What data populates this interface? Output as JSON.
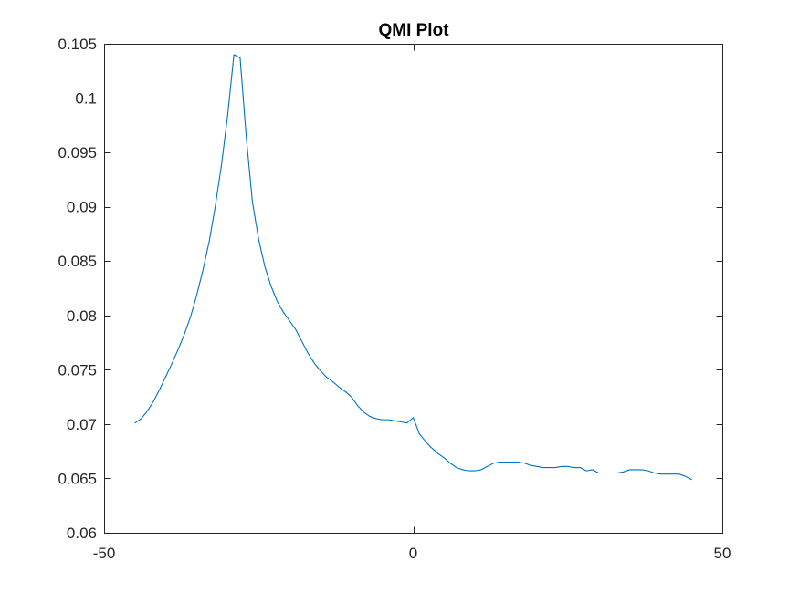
{
  "figure": {
    "background": "#ffffff",
    "axes_color": "#262626"
  },
  "chart_data": {
    "type": "line",
    "title": "QMI Plot",
    "xlabel": "",
    "ylabel": "",
    "xlim": [
      -50,
      50
    ],
    "ylim": [
      0.06,
      0.105
    ],
    "grid": false,
    "box": true,
    "x_ticks": [
      -50,
      0,
      50
    ],
    "x_tick_labels": [
      "-50",
      "0",
      "50"
    ],
    "y_ticks": [
      0.06,
      0.065,
      0.07,
      0.075,
      0.08,
      0.085,
      0.09,
      0.095,
      0.1,
      0.105
    ],
    "y_tick_labels": [
      "0.06",
      "0.065",
      "0.07",
      "0.075",
      "0.08",
      "0.085",
      "0.09",
      "0.095",
      "0.1",
      "0.105"
    ],
    "series": [
      {
        "color": "#0072BD",
        "x": [
          -45,
          -44,
          -43,
          -42,
          -41,
          -40,
          -39,
          -38,
          -37,
          -36,
          -35,
          -34,
          -33,
          -32,
          -31,
          -30,
          -29,
          -28,
          -27,
          -26,
          -25,
          -24,
          -23,
          -22,
          -21,
          -20,
          -19,
          -18,
          -17,
          -16,
          -15,
          -14,
          -13,
          -12,
          -11,
          -10,
          -9,
          -8,
          -7,
          -6,
          -5,
          -4,
          -3,
          -2,
          -1,
          0,
          1,
          2,
          3,
          4,
          5,
          6,
          7,
          8,
          9,
          10,
          11,
          12,
          13,
          14,
          15,
          16,
          17,
          18,
          19,
          20,
          21,
          22,
          23,
          24,
          25,
          26,
          27,
          28,
          29,
          30,
          31,
          32,
          33,
          34,
          35,
          36,
          37,
          38,
          39,
          40,
          41,
          42,
          43,
          44,
          45
        ],
        "y": [
          0.0701,
          0.0705,
          0.0712,
          0.0721,
          0.0732,
          0.0744,
          0.0756,
          0.0769,
          0.0783,
          0.0799,
          0.0819,
          0.0842,
          0.0868,
          0.0901,
          0.0939,
          0.0985,
          0.104,
          0.1037,
          0.0964,
          0.0904,
          0.087,
          0.0845,
          0.0827,
          0.0813,
          0.0803,
          0.0795,
          0.0787,
          0.0776,
          0.0765,
          0.0756,
          0.0749,
          0.0743,
          0.0739,
          0.0734,
          0.073,
          0.0725,
          0.0717,
          0.0711,
          0.0707,
          0.0705,
          0.0704,
          0.0704,
          0.0703,
          0.0702,
          0.0701,
          0.0706,
          0.0691,
          0.0684,
          0.0678,
          0.0673,
          0.0669,
          0.0664,
          0.066,
          0.0658,
          0.0657,
          0.0657,
          0.0658,
          0.0661,
          0.0664,
          0.0665,
          0.0665,
          0.0665,
          0.0665,
          0.0664,
          0.0662,
          0.0661,
          0.066,
          0.066,
          0.066,
          0.0661,
          0.0661,
          0.066,
          0.066,
          0.0657,
          0.0658,
          0.0655,
          0.0655,
          0.0655,
          0.0655,
          0.0656,
          0.0658,
          0.0658,
          0.0658,
          0.0657,
          0.0655,
          0.0654,
          0.0654,
          0.0654,
          0.0654,
          0.0652,
          0.0649
        ]
      }
    ]
  }
}
